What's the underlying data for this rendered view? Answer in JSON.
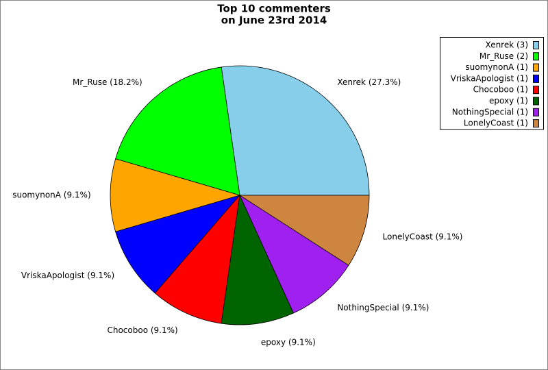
{
  "chart_data": {
    "type": "pie",
    "title": [
      "Top 10 commenters",
      "on June 23rd 2014"
    ],
    "categories": [
      "Xenrek (3)",
      "Mr_Ruse (2)",
      "suomynonA (1)",
      "VriskaApologist (1)",
      "Chocoboo (1)",
      "epoxy (1)",
      "NothingSpecial (1)",
      "LonelyCoast (1)"
    ],
    "values": [
      3,
      2,
      1,
      1,
      1,
      1,
      1,
      1
    ],
    "value_labels": [
      "Xenrek (27.3%)",
      "Mr_Ruse (18.2%)",
      "suomynonA (9.1%)",
      "VriskaApologist (9.1%)",
      "Chocoboo (9.1%)",
      "epoxy (9.1%)",
      "NothingSpecial (9.1%)",
      "LonelyCoast (9.1%)"
    ],
    "colors": [
      "#87ceeb",
      "#00ff00",
      "#ffa500",
      "#0000ff",
      "#ff0000",
      "#006400",
      "#a020f0",
      "#cd853f"
    ],
    "legend": "upper right"
  }
}
